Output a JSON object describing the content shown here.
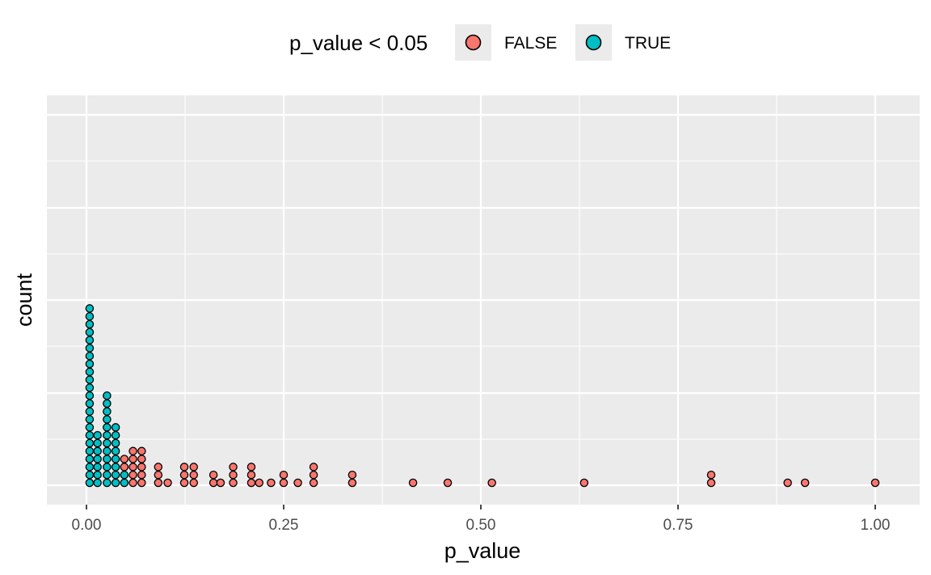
{
  "chart_data": {
    "type": "dotplot",
    "xlabel": "p_value",
    "ylabel": "count",
    "xlim": [
      -0.02,
      1.03
    ],
    "x_ticks": [
      {
        "value": 0.0,
        "label": "0.00"
      },
      {
        "value": 0.25,
        "label": "0.25"
      },
      {
        "value": 0.5,
        "label": "0.50"
      },
      {
        "value": 0.75,
        "label": "0.75"
      },
      {
        "value": 1.0,
        "label": "1.00"
      }
    ],
    "grid": true,
    "legend": {
      "title": "p_value < 0.05",
      "position": "top",
      "entries": [
        {
          "label": "FALSE",
          "color": "#F8766D"
        },
        {
          "label": "TRUE",
          "color": "#00BFC4"
        }
      ]
    },
    "colors": {
      "FALSE": "#F8766D",
      "TRUE": "#00BFC4",
      "panel": "#EBEBEB",
      "grid": "#FFFFFF"
    },
    "stacks": [
      {
        "x": 0.004,
        "count": 23,
        "group": "TRUE"
      },
      {
        "x": 0.014,
        "count": 7,
        "group": "TRUE"
      },
      {
        "x": 0.026,
        "count": 12,
        "group": "TRUE"
      },
      {
        "x": 0.037,
        "count": 8,
        "group": "TRUE"
      },
      {
        "x": 0.048,
        "count": 2,
        "group": "TRUE"
      },
      {
        "x": 0.048,
        "count": 2,
        "group": "FALSE"
      },
      {
        "x": 0.059,
        "count": 5,
        "group": "FALSE"
      },
      {
        "x": 0.07,
        "count": 5,
        "group": "FALSE"
      },
      {
        "x": 0.091,
        "count": 3,
        "group": "FALSE"
      },
      {
        "x": 0.103,
        "count": 1,
        "group": "FALSE"
      },
      {
        "x": 0.124,
        "count": 3,
        "group": "FALSE"
      },
      {
        "x": 0.136,
        "count": 3,
        "group": "FALSE"
      },
      {
        "x": 0.161,
        "count": 2,
        "group": "FALSE"
      },
      {
        "x": 0.17,
        "count": 1,
        "group": "FALSE"
      },
      {
        "x": 0.186,
        "count": 3,
        "group": "FALSE"
      },
      {
        "x": 0.209,
        "count": 3,
        "group": "FALSE"
      },
      {
        "x": 0.219,
        "count": 1,
        "group": "FALSE"
      },
      {
        "x": 0.234,
        "count": 1,
        "group": "FALSE"
      },
      {
        "x": 0.25,
        "count": 2,
        "group": "FALSE"
      },
      {
        "x": 0.268,
        "count": 1,
        "group": "FALSE"
      },
      {
        "x": 0.288,
        "count": 3,
        "group": "FALSE"
      },
      {
        "x": 0.337,
        "count": 2,
        "group": "FALSE"
      },
      {
        "x": 0.414,
        "count": 1,
        "group": "FALSE"
      },
      {
        "x": 0.458,
        "count": 1,
        "group": "FALSE"
      },
      {
        "x": 0.514,
        "count": 1,
        "group": "FALSE"
      },
      {
        "x": 0.631,
        "count": 1,
        "group": "FALSE"
      },
      {
        "x": 0.792,
        "count": 2,
        "group": "FALSE"
      },
      {
        "x": 0.889,
        "count": 1,
        "group": "FALSE"
      },
      {
        "x": 0.911,
        "count": 1,
        "group": "FALSE"
      },
      {
        "x": 1.0,
        "count": 1,
        "group": "FALSE"
      }
    ]
  }
}
